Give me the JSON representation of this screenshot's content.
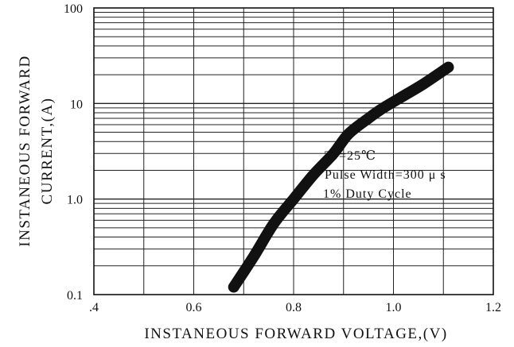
{
  "chart_data": {
    "type": "line",
    "title": "",
    "xlabel": "INSTANEOUS FORWARD VOLTAGE,(V)",
    "ylabel_lines": [
      "INSTANEOUS FORWARD",
      "CURRENT,(A)"
    ],
    "xlim": [
      0.4,
      1.2
    ],
    "ylim": [
      0.1,
      100
    ],
    "yscale": "log",
    "grid": true,
    "x_ticks": [
      0.4,
      0.6,
      0.8,
      1.0,
      1.2
    ],
    "x_tick_labels": [
      ".4",
      "0.6",
      "0.8",
      "1.0",
      "1.2"
    ],
    "y_ticks": [
      0.1,
      1,
      10,
      100
    ],
    "y_tick_labels": [
      "0.1",
      "1.0",
      "10",
      "100"
    ],
    "annotations": [
      "TJ=25℃",
      "Pulse Width=300 μ s",
      "1% Duty Cycle"
    ],
    "series": [
      {
        "color": "#111111",
        "x": [
          0.68,
          0.72,
          0.76,
          0.8,
          0.84,
          0.88,
          0.91,
          0.95,
          0.98,
          1.02,
          1.06,
          1.11
        ],
        "y": [
          0.12,
          0.25,
          0.55,
          1.0,
          1.8,
          3.0,
          4.8,
          7.0,
          9.0,
          12.0,
          16.0,
          24.0
        ]
      }
    ]
  }
}
